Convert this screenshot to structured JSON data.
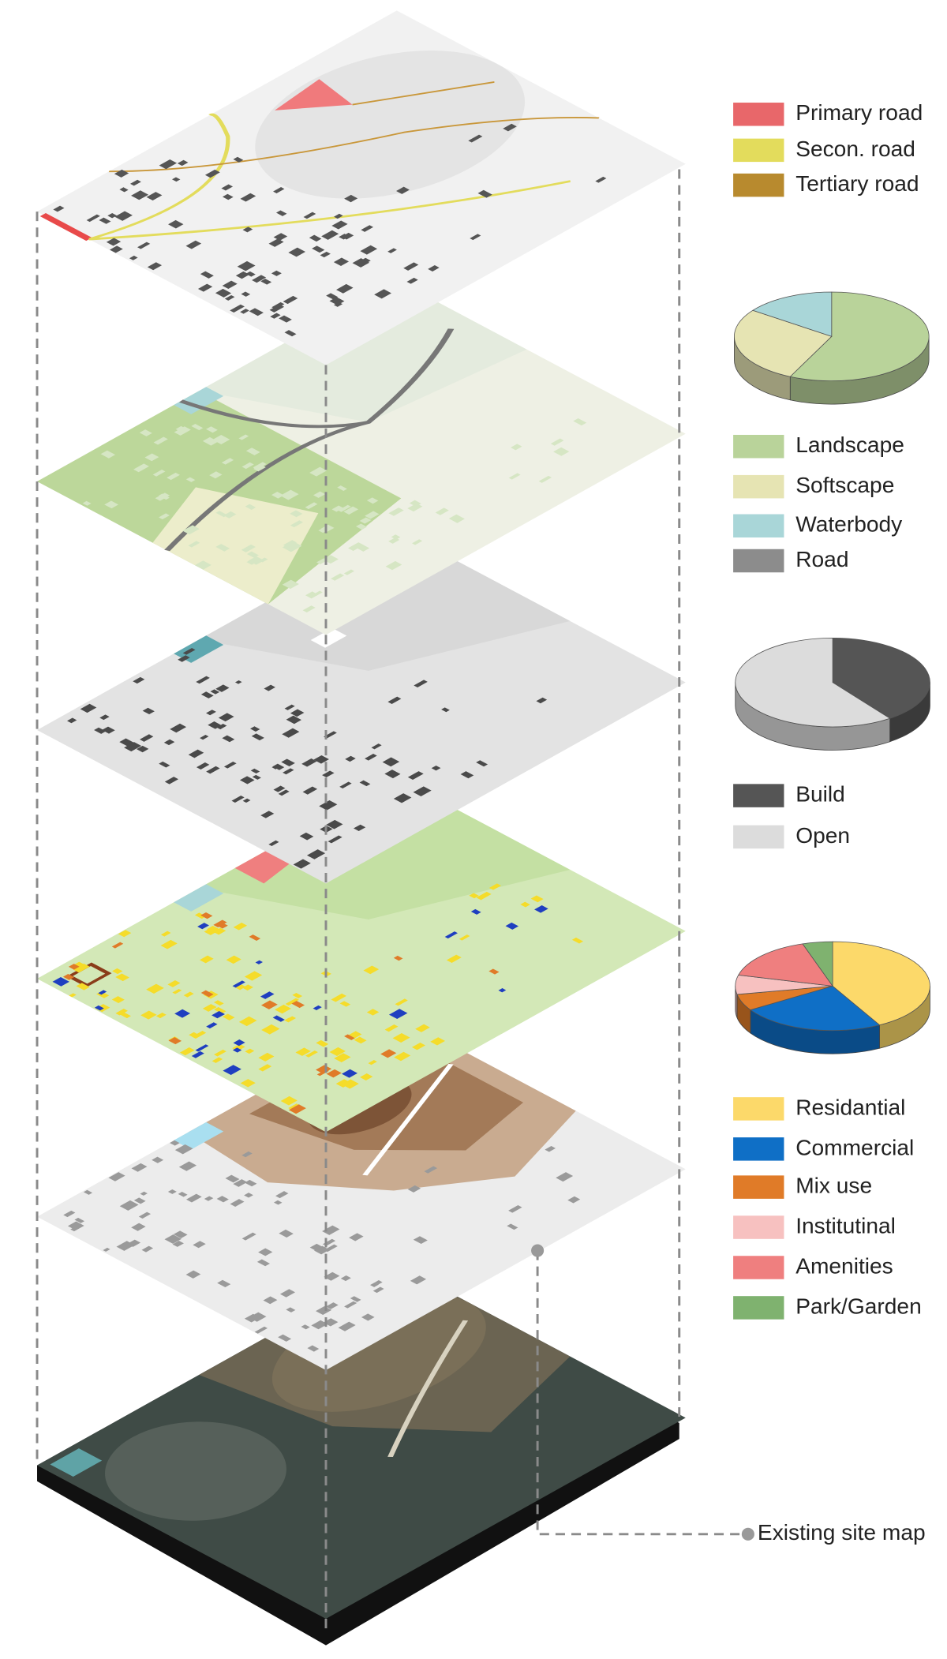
{
  "legends": {
    "roads": {
      "items": [
        {
          "label": "Primary road",
          "color": "#e8676a"
        },
        {
          "label": "Secon. road",
          "color": "#e3dc5c"
        },
        {
          "label": "Tertiary road",
          "color": "#b88a2e"
        }
      ]
    },
    "land_cover": {
      "items": [
        {
          "label": "Landscape",
          "color": "#b9d39a"
        },
        {
          "label": "Softscape",
          "color": "#e6e4b3"
        },
        {
          "label": "Waterbody",
          "color": "#a9d6d8"
        },
        {
          "label": "Road",
          "color": "#8c8c8c"
        }
      ],
      "values": [
        57,
        28,
        15,
        0
      ]
    },
    "built_open": {
      "items": [
        {
          "label": "Build",
          "color": "#555555"
        },
        {
          "label": "Open",
          "color": "#dcdcdc"
        }
      ],
      "values": [
        40,
        60
      ]
    },
    "land_use": {
      "items": [
        {
          "label": "Residantial",
          "color": "#fcd96a"
        },
        {
          "label": "Commercial",
          "color": "#0f6fc6"
        },
        {
          "label": "Mix use",
          "color": "#e07b28"
        },
        {
          "label": "Institutinal",
          "color": "#f7c1c0"
        },
        {
          "label": "Amenities",
          "color": "#ef7f7f"
        },
        {
          "label": "Park/Garden",
          "color": "#7fb26f"
        }
      ],
      "values": [
        42,
        24,
        6,
        7,
        16,
        5
      ]
    }
  },
  "callout": "Existing site map"
}
